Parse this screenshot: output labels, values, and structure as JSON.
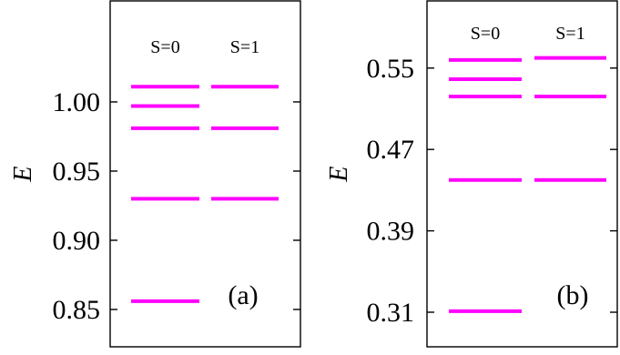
{
  "chart_data": [
    {
      "type": "energy-levels",
      "panel_label": "(a)",
      "ylabel": "E",
      "ylim": [
        0.823,
        1.073
      ],
      "yticks": [
        0.85,
        0.9,
        0.95,
        1.0
      ],
      "ytick_labels": [
        "0.85",
        "0.90",
        "0.95",
        "1.00"
      ],
      "columns": [
        {
          "label": "S=0",
          "levels": [
            1.011,
            0.997,
            0.981,
            0.93,
            0.856
          ],
          "color": "#ff00ff"
        },
        {
          "label": "S=1",
          "levels": [
            1.011,
            0.981,
            0.93
          ],
          "color": "#ff00ff"
        }
      ]
    },
    {
      "type": "energy-levels",
      "panel_label": "(b)",
      "ylabel": "E",
      "ylim": [
        0.276,
        0.616
      ],
      "yticks": [
        0.31,
        0.39,
        0.47,
        0.55
      ],
      "ytick_labels": [
        "0.31",
        "0.39",
        "0.47",
        "0.55"
      ],
      "columns": [
        {
          "label": "S=0",
          "levels": [
            0.558,
            0.539,
            0.522,
            0.44,
            0.311
          ],
          "color": "#ff00ff"
        },
        {
          "label": "S=1",
          "levels": [
            0.56,
            0.522,
            0.44
          ],
          "color": "#ff00ff"
        }
      ]
    }
  ]
}
